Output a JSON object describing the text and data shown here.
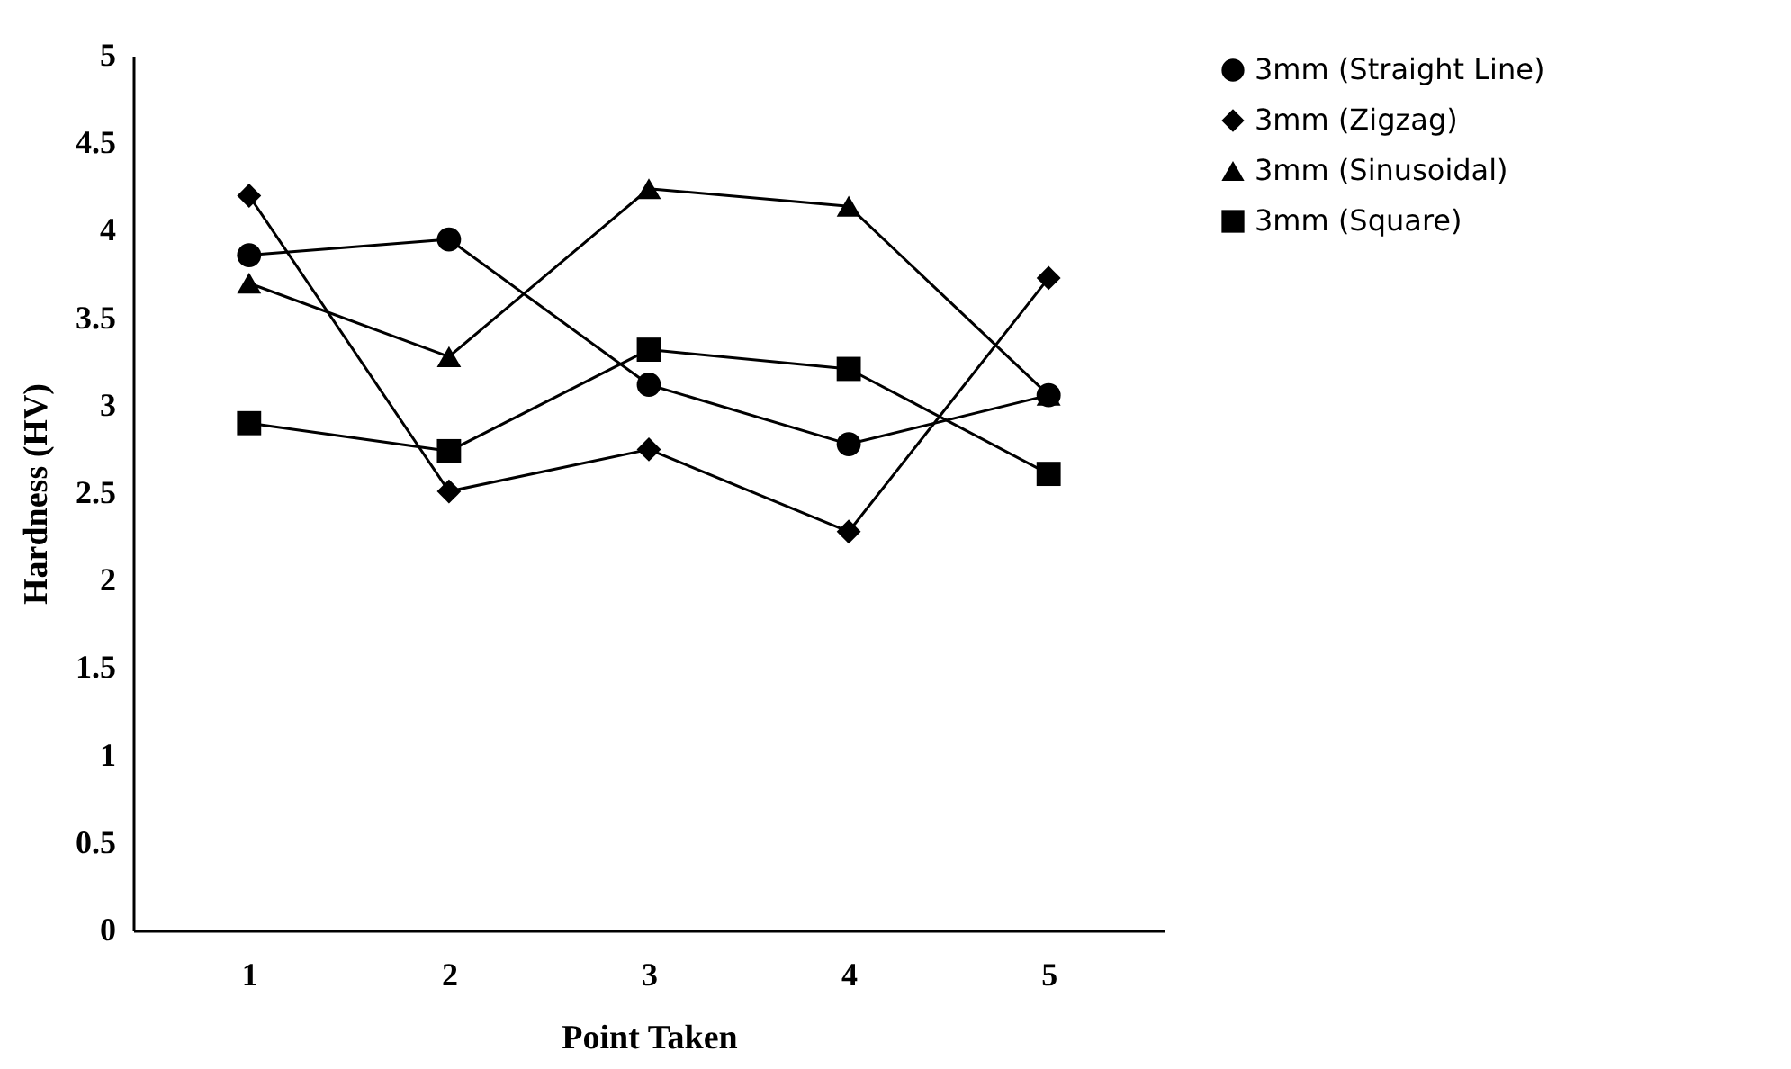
{
  "chart_data": {
    "type": "line",
    "xlabel": "Point Taken",
    "ylabel": "Hardness (HV)",
    "categories": [
      "1",
      "2",
      "3",
      "4",
      "5"
    ],
    "series": [
      {
        "name": "3mm (Straight Line)",
        "color": "#000000",
        "marker": "circle",
        "values": [
          3.86,
          3.95,
          3.12,
          2.78,
          3.06
        ]
      },
      {
        "name": "3mm (Zigzag)",
        "color": "#000000",
        "marker": "diamond",
        "values": [
          4.2,
          2.51,
          2.75,
          2.28,
          3.73
        ]
      },
      {
        "name": "3mm (Sinusoidal)",
        "color": "#000000",
        "marker": "triangle",
        "values": [
          3.7,
          3.28,
          4.24,
          4.14,
          3.06
        ]
      },
      {
        "name": "3mm (Square)",
        "color": "#000000",
        "marker": "square",
        "values": [
          2.9,
          2.74,
          3.32,
          3.21,
          2.61
        ]
      }
    ],
    "ylim": [
      0,
      5
    ],
    "yticks": [
      0,
      0.5,
      1,
      1.5,
      2,
      2.5,
      3,
      3.5,
      4,
      4.5,
      5
    ],
    "grid": false,
    "legend": "right",
    "line_style": "solid"
  }
}
